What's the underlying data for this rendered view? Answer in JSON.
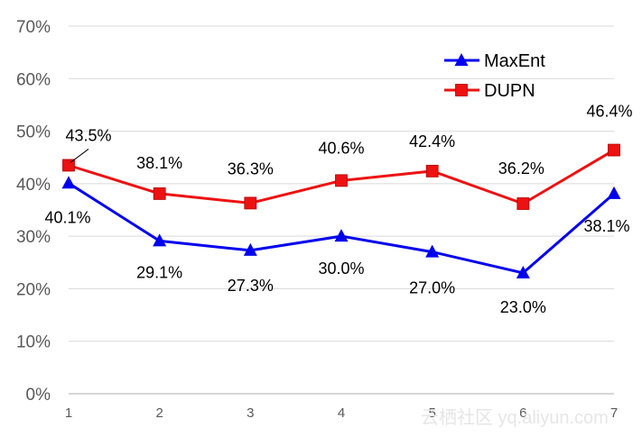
{
  "chart_data": {
    "type": "line",
    "title": "",
    "xlabel": "",
    "ylabel": "",
    "categories": [
      "1",
      "2",
      "3",
      "4",
      "5",
      "6",
      "7"
    ],
    "y_ticks": [
      "0%",
      "10%",
      "20%",
      "30%",
      "40%",
      "50%",
      "60%",
      "70%"
    ],
    "ylim": [
      0,
      70
    ],
    "grid": "horizontal",
    "legend_position": "top-right",
    "series": [
      {
        "name": "MaxEnt",
        "color": "#0000ee",
        "marker": "triangle",
        "values": [
          40.1,
          29.1,
          27.3,
          30.0,
          27.0,
          23.0,
          38.1
        ],
        "labels": [
          "40.1%",
          "29.1%",
          "27.3%",
          "30.0%",
          "27.0%",
          "23.0%",
          "38.1%"
        ]
      },
      {
        "name": "DUPN",
        "color": "#ee1111",
        "marker": "square",
        "values": [
          43.5,
          38.1,
          36.3,
          40.6,
          42.4,
          36.2,
          46.4
        ],
        "labels": [
          "43.5%",
          "38.1%",
          "36.3%",
          "40.6%",
          "42.4%",
          "36.2%",
          "46.4%"
        ]
      }
    ]
  },
  "watermark": "云栖社区 yq.aliyun.com"
}
